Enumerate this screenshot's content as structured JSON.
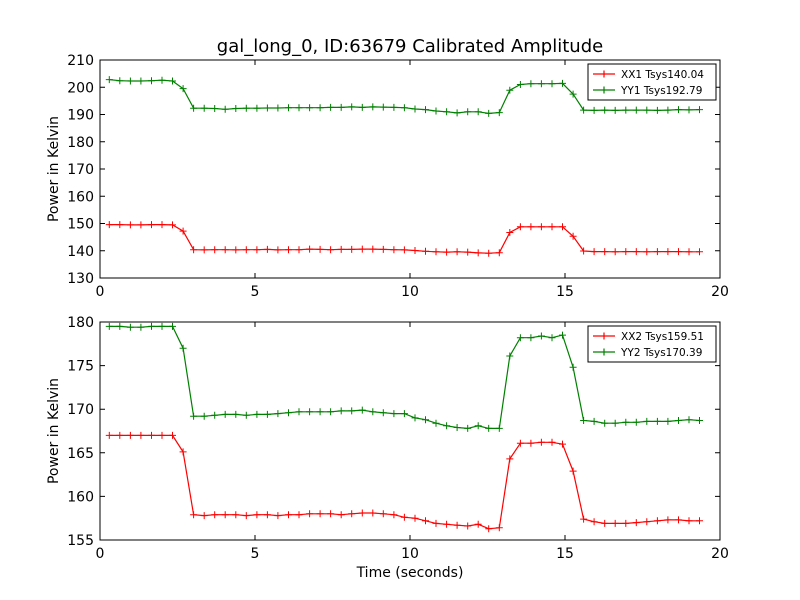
{
  "figure_title": "gal_long_0, ID:63679 Calibrated Amplitude",
  "chart_data": [
    {
      "type": "line",
      "title": "gal_long_0, ID:63679 Calibrated Amplitude",
      "xlabel": "",
      "ylabel": "Power in Kelvin",
      "xlim": [
        0,
        20
      ],
      "ylim": [
        130,
        210
      ],
      "xticks": [
        0,
        5,
        10,
        15,
        20
      ],
      "yticks": [
        130,
        140,
        150,
        160,
        170,
        180,
        190,
        200,
        210
      ],
      "grid": false,
      "legend_position": "top-right",
      "series": [
        {
          "name": "XX1 Tsys140.04",
          "color": "#ff0000",
          "marker": "plus",
          "x": [
            0.3,
            0.64,
            0.98,
            1.32,
            1.66,
            2.0,
            2.34,
            2.68,
            3.02,
            3.36,
            3.7,
            4.04,
            4.38,
            4.72,
            5.06,
            5.4,
            5.74,
            6.08,
            6.42,
            6.76,
            7.1,
            7.44,
            7.78,
            8.12,
            8.46,
            8.8,
            9.14,
            9.48,
            9.82,
            10.16,
            10.5,
            10.84,
            11.18,
            11.52,
            11.86,
            12.2,
            12.54,
            12.88,
            13.22,
            13.56,
            13.9,
            14.24,
            14.58,
            14.92,
            15.26,
            15.6,
            15.94,
            16.28,
            16.62,
            16.96,
            17.3,
            17.64,
            17.98,
            18.32,
            18.66,
            19.0,
            19.34
          ],
          "y": [
            149.6,
            149.6,
            149.5,
            149.5,
            149.6,
            149.6,
            149.5,
            147.2,
            140.4,
            140.3,
            140.4,
            140.4,
            140.3,
            140.4,
            140.4,
            140.5,
            140.3,
            140.4,
            140.4,
            140.6,
            140.5,
            140.4,
            140.5,
            140.5,
            140.6,
            140.6,
            140.5,
            140.4,
            140.3,
            140.1,
            139.8,
            139.6,
            139.5,
            139.6,
            139.5,
            139.2,
            139.1,
            139.3,
            146.7,
            148.8,
            148.8,
            148.8,
            148.8,
            148.8,
            145.3,
            139.9,
            139.7,
            139.7,
            139.6,
            139.7,
            139.7,
            139.6,
            139.7,
            139.7,
            139.7,
            139.6,
            139.6
          ]
        },
        {
          "name": "YY1 Tsys192.79",
          "color": "#008000",
          "marker": "plus",
          "x": [
            0.3,
            0.64,
            0.98,
            1.32,
            1.66,
            2.0,
            2.34,
            2.68,
            3.02,
            3.36,
            3.7,
            4.04,
            4.38,
            4.72,
            5.06,
            5.4,
            5.74,
            6.08,
            6.42,
            6.76,
            7.1,
            7.44,
            7.78,
            8.12,
            8.46,
            8.8,
            9.14,
            9.48,
            9.82,
            10.16,
            10.5,
            10.84,
            11.18,
            11.52,
            11.86,
            12.2,
            12.54,
            12.88,
            13.22,
            13.56,
            13.9,
            14.24,
            14.58,
            14.92,
            15.26,
            15.6,
            15.94,
            16.28,
            16.62,
            16.96,
            17.3,
            17.64,
            17.98,
            18.32,
            18.66,
            19.0,
            19.34
          ],
          "y": [
            202.8,
            202.4,
            202.3,
            202.3,
            202.4,
            202.6,
            202.3,
            199.5,
            192.3,
            192.3,
            192.2,
            191.9,
            192.2,
            192.3,
            192.3,
            192.4,
            192.4,
            192.5,
            192.5,
            192.5,
            192.5,
            192.6,
            192.6,
            192.8,
            192.6,
            192.8,
            192.7,
            192.6,
            192.5,
            192.0,
            191.8,
            191.3,
            191.0,
            190.6,
            191.0,
            191.0,
            190.4,
            190.7,
            198.9,
            201.0,
            201.3,
            201.3,
            201.3,
            201.4,
            197.5,
            191.6,
            191.5,
            191.6,
            191.5,
            191.6,
            191.6,
            191.6,
            191.5,
            191.6,
            191.8,
            191.7,
            191.8
          ]
        }
      ]
    },
    {
      "type": "line",
      "title": "",
      "xlabel": "Time (seconds)",
      "ylabel": "Power in Kelvin",
      "xlim": [
        0,
        20
      ],
      "ylim": [
        155,
        180
      ],
      "xticks": [
        0,
        5,
        10,
        15,
        20
      ],
      "yticks": [
        155,
        160,
        165,
        170,
        175,
        180
      ],
      "grid": false,
      "legend_position": "top-right",
      "series": [
        {
          "name": "XX2 Tsys159.51",
          "color": "#ff0000",
          "marker": "plus",
          "x": [
            0.3,
            0.64,
            0.98,
            1.32,
            1.66,
            2.0,
            2.34,
            2.68,
            3.02,
            3.36,
            3.7,
            4.04,
            4.38,
            4.72,
            5.06,
            5.4,
            5.74,
            6.08,
            6.42,
            6.76,
            7.1,
            7.44,
            7.78,
            8.12,
            8.46,
            8.8,
            9.14,
            9.48,
            9.82,
            10.16,
            10.5,
            10.84,
            11.18,
            11.52,
            11.86,
            12.2,
            12.54,
            12.88,
            13.22,
            13.56,
            13.9,
            14.24,
            14.58,
            14.92,
            15.26,
            15.6,
            15.94,
            16.28,
            16.62,
            16.96,
            17.3,
            17.64,
            17.98,
            18.32,
            18.66,
            19.0,
            19.34
          ],
          "y": [
            167.0,
            167.0,
            167.0,
            167.0,
            167.0,
            167.0,
            167.0,
            165.1,
            157.9,
            157.8,
            157.9,
            157.9,
            157.9,
            157.8,
            157.9,
            157.9,
            157.8,
            157.9,
            157.9,
            158.0,
            158.0,
            158.0,
            157.9,
            158.0,
            158.1,
            158.1,
            158.0,
            157.9,
            157.6,
            157.5,
            157.2,
            156.9,
            156.8,
            156.7,
            156.6,
            156.8,
            156.3,
            156.4,
            164.3,
            166.1,
            166.1,
            166.2,
            166.2,
            166.0,
            162.9,
            157.4,
            157.1,
            156.9,
            156.9,
            156.9,
            157.0,
            157.1,
            157.2,
            157.3,
            157.3,
            157.2,
            157.2
          ]
        },
        {
          "name": "YY2 Tsys170.39",
          "color": "#008000",
          "marker": "plus",
          "x": [
            0.3,
            0.64,
            0.98,
            1.32,
            1.66,
            2.0,
            2.34,
            2.68,
            3.02,
            3.36,
            3.7,
            4.04,
            4.38,
            4.72,
            5.06,
            5.4,
            5.74,
            6.08,
            6.42,
            6.76,
            7.1,
            7.44,
            7.78,
            8.12,
            8.46,
            8.8,
            9.14,
            9.48,
            9.82,
            10.16,
            10.5,
            10.84,
            11.18,
            11.52,
            11.86,
            12.2,
            12.54,
            12.88,
            13.22,
            13.56,
            13.9,
            14.24,
            14.58,
            14.92,
            15.26,
            15.6,
            15.94,
            16.28,
            16.62,
            16.96,
            17.3,
            17.64,
            17.98,
            18.32,
            18.66,
            19.0,
            19.34
          ],
          "y": [
            179.5,
            179.5,
            179.4,
            179.4,
            179.5,
            179.5,
            179.5,
            177.0,
            169.2,
            169.2,
            169.3,
            169.4,
            169.4,
            169.3,
            169.4,
            169.4,
            169.5,
            169.6,
            169.7,
            169.7,
            169.7,
            169.7,
            169.8,
            169.8,
            169.9,
            169.7,
            169.6,
            169.5,
            169.5,
            169.0,
            168.8,
            168.4,
            168.1,
            167.9,
            167.8,
            168.1,
            167.8,
            167.8,
            176.1,
            178.2,
            178.2,
            178.4,
            178.2,
            178.5,
            174.8,
            168.7,
            168.6,
            168.4,
            168.4,
            168.5,
            168.5,
            168.6,
            168.6,
            168.6,
            168.7,
            168.8,
            168.7
          ]
        }
      ]
    }
  ]
}
